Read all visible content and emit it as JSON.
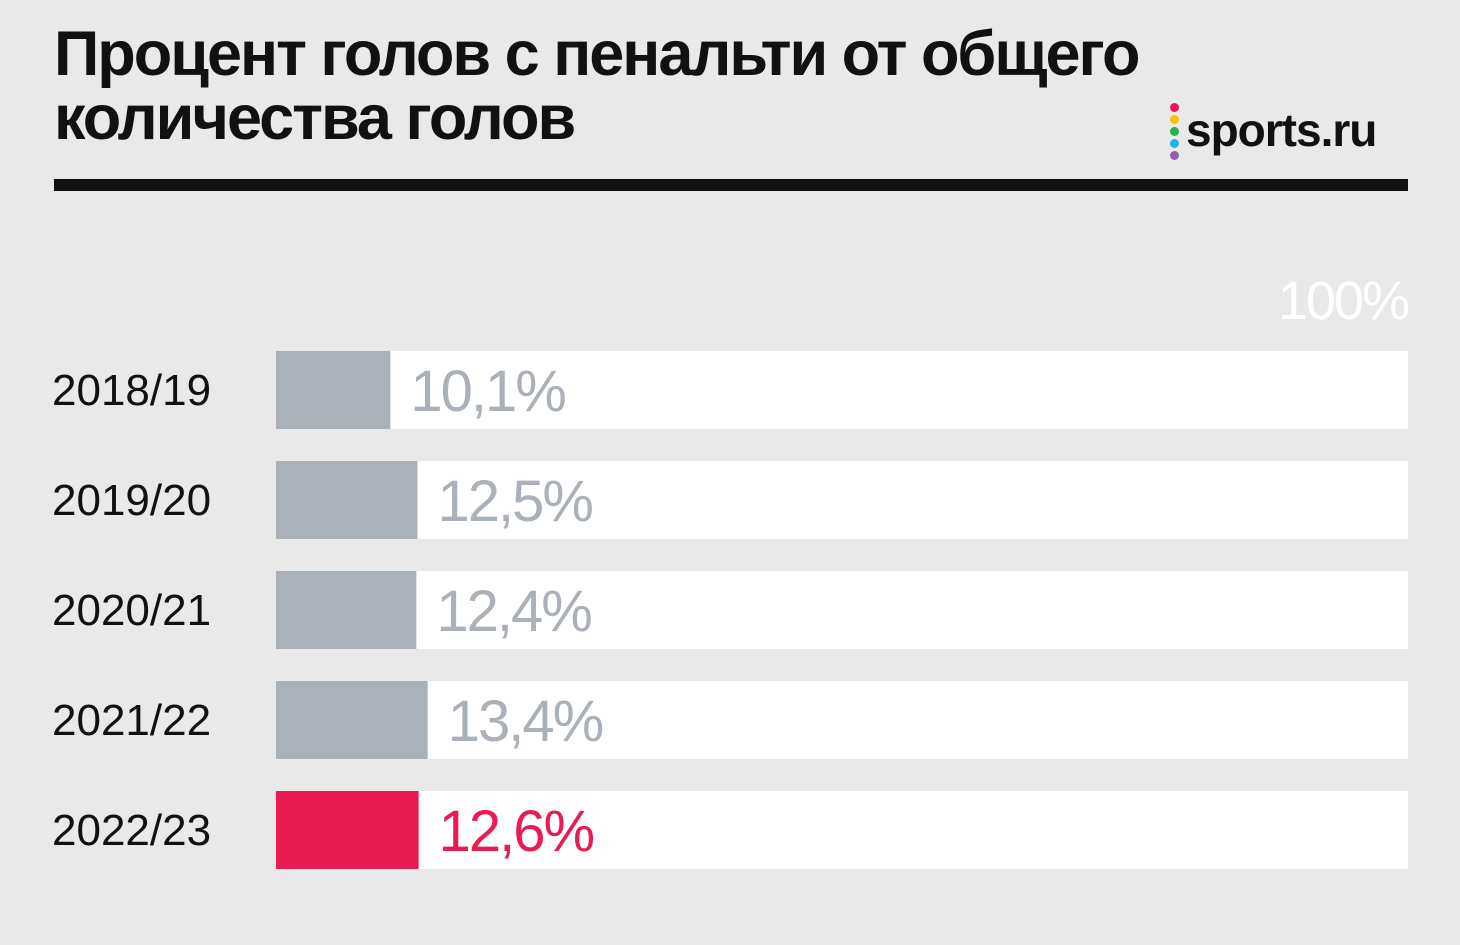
{
  "title": "Процент голов с пенальти от общего количества голов",
  "brand": {
    "name": "sports.ru",
    "dot_colors": [
      "#e8175d",
      "#f6c400",
      "#2ab34a",
      "#1fb3e8",
      "#9b59b6"
    ]
  },
  "colors": {
    "background": "#e9e9e9",
    "track": "#ffffff",
    "bar_default": "#abb1b8",
    "bar_highlight": "#e81c52",
    "label_default": "#abb1b8",
    "label_highlight": "#e81c52",
    "category_text": "#111111"
  },
  "chart_data": {
    "type": "bar",
    "orientation": "horizontal",
    "max_label": "100%",
    "xlim": [
      0,
      100
    ],
    "categories": [
      "2018/19",
      "2019/20",
      "2020/21",
      "2021/22",
      "2022/23"
    ],
    "values": [
      10.1,
      12.5,
      12.4,
      13.4,
      12.6
    ],
    "value_labels": [
      "10,1%",
      "12,5%",
      "12,4%",
      "13,4%",
      "12,6%"
    ],
    "highlight_index": 4
  }
}
